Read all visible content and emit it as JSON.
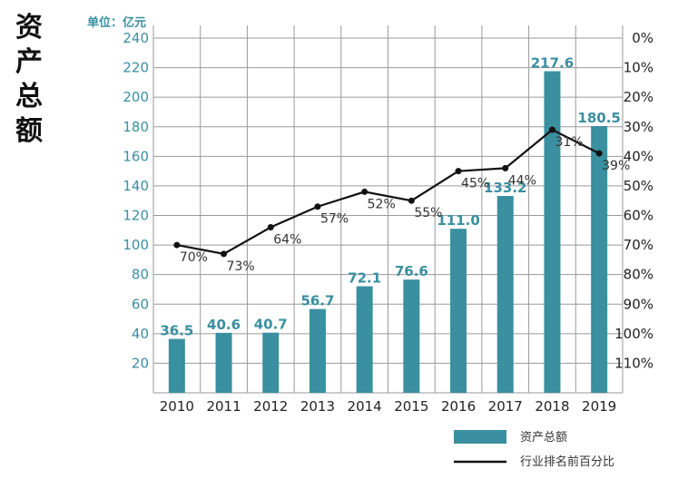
{
  "page": {
    "title": "资产总额"
  },
  "chart_data": {
    "type": "bar",
    "unit": "单位：亿元",
    "categories": [
      "2010",
      "2011",
      "2012",
      "2013",
      "2014",
      "2015",
      "2016",
      "2017",
      "2018",
      "2019"
    ],
    "series": [
      {
        "name": "资产总额",
        "type": "bar",
        "axis": "left",
        "values": [
          36.5,
          40.6,
          40.7,
          56.7,
          72.1,
          76.6,
          111.0,
          133.2,
          217.6,
          180.5
        ],
        "labels": [
          "36.5",
          "40.6",
          "40.7",
          "56.7",
          "72.1",
          "76.6",
          "111.0",
          "133.2",
          "217.6",
          "180.5"
        ],
        "color": "#3a8fa0"
      },
      {
        "name": "行业排名前百分比",
        "type": "line",
        "axis": "right",
        "values": [
          70,
          73,
          64,
          57,
          52,
          55,
          45,
          44,
          31,
          39
        ],
        "labels": [
          "70%",
          "73%",
          "64%",
          "57%",
          "52%",
          "55%",
          "45%",
          "44%",
          "31%",
          "39%"
        ],
        "color": "#111111"
      }
    ],
    "y_left": {
      "ticks": [
        20,
        40,
        60,
        80,
        100,
        120,
        140,
        160,
        180,
        200,
        220,
        240
      ],
      "range": [
        0,
        240
      ]
    },
    "y_right": {
      "ticks": [
        "0%",
        "10%",
        "20%",
        "30%",
        "40%",
        "50%",
        "60%",
        "70%",
        "80%",
        "90%",
        "100%",
        "110%"
      ],
      "tick_values": [
        0,
        10,
        20,
        30,
        40,
        50,
        60,
        70,
        80,
        90,
        100,
        110
      ],
      "reversed": true
    },
    "grid": true,
    "legend": {
      "position": "bottom-right"
    }
  }
}
